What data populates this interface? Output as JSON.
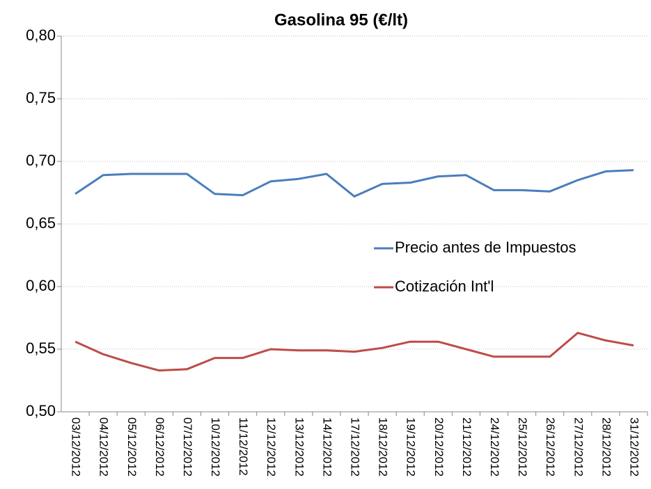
{
  "chart_data": {
    "type": "line",
    "title": "Gasolina 95 (€/lt)",
    "categories": [
      "03/12/2012",
      "04/12/2012",
      "05/12/2012",
      "06/12/2012",
      "07/12/2012",
      "10/12/2012",
      "11/12/2012",
      "12/12/2012",
      "13/12/2012",
      "14/12/2012",
      "17/12/2012",
      "18/12/2012",
      "19/12/2012",
      "20/12/2012",
      "21/12/2012",
      "24/12/2012",
      "25/12/2012",
      "26/12/2012",
      "27/12/2012",
      "28/12/2012",
      "31/12/2012"
    ],
    "series": [
      {
        "name": "Precio antes de Impuestos",
        "color": "#4a7ebb",
        "values": [
          0.674,
          0.689,
          0.69,
          0.69,
          0.69,
          0.674,
          0.673,
          0.684,
          0.686,
          0.69,
          0.672,
          0.682,
          0.683,
          0.688,
          0.689,
          0.677,
          0.677,
          0.676,
          0.685,
          0.692,
          0.693
        ]
      },
      {
        "name": "Cotización Int'l",
        "color": "#be4b48",
        "values": [
          0.556,
          0.546,
          0.539,
          0.533,
          0.534,
          0.543,
          0.543,
          0.55,
          0.549,
          0.549,
          0.548,
          0.551,
          0.556,
          0.556,
          0.55,
          0.544,
          0.544,
          0.544,
          0.563,
          0.557,
          0.553
        ]
      }
    ],
    "ylim": [
      0.5,
      0.8
    ],
    "yticks": [
      {
        "value": 0.5,
        "label": "0,50"
      },
      {
        "value": 0.55,
        "label": "0,55"
      },
      {
        "value": 0.6,
        "label": "0,60"
      },
      {
        "value": 0.65,
        "label": "0,65"
      },
      {
        "value": 0.7,
        "label": "0,70"
      },
      {
        "value": 0.75,
        "label": "0,75"
      },
      {
        "value": 0.8,
        "label": "0,80"
      }
    ],
    "grid": true,
    "legend": "right"
  }
}
